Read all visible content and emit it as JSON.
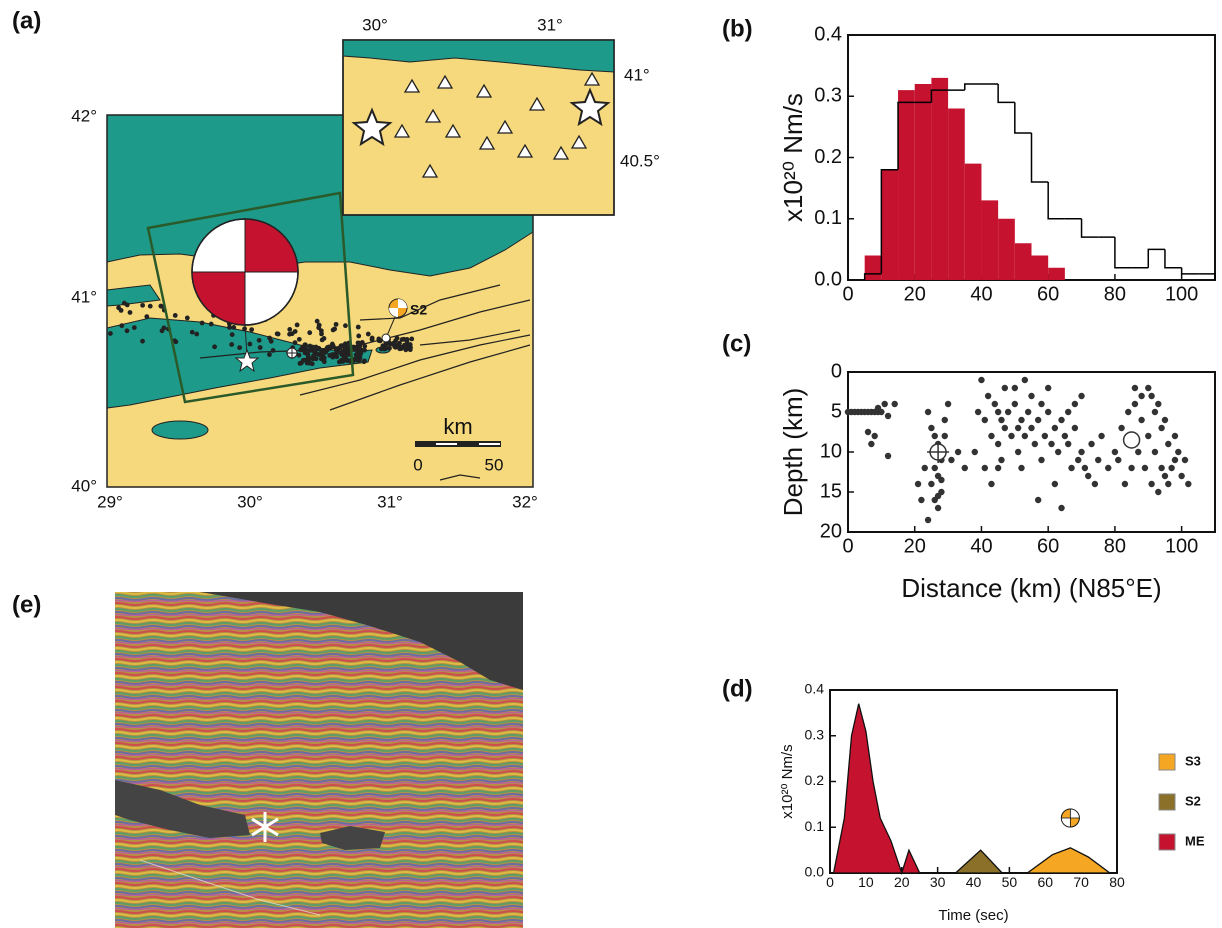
{
  "map": {
    "label": "(a)",
    "lat_labels": [
      "42°",
      "41°",
      "40°"
    ],
    "lon_labels": [
      "29°",
      "30°",
      "31°",
      "32°"
    ],
    "inset_lon_labels": [
      "30°",
      "31°"
    ],
    "inset_lat_labels": [
      "41°",
      "40.5°"
    ],
    "event_label": "S2",
    "scale_title": "km",
    "scale_labels": [
      "0",
      "50"
    ]
  },
  "image": {
    "label": "(e)"
  },
  "chart_data": [
    {
      "type": "histogram",
      "label": "(b)",
      "ylabel": "x10²⁰ Nm/s",
      "bins": [
        5,
        10,
        15,
        20,
        25,
        30,
        35,
        40,
        45,
        50,
        55,
        60,
        65,
        70,
        75,
        80,
        85,
        90,
        95,
        100,
        105,
        110
      ],
      "series": [
        {
          "color": "#c4122f",
          "style": "filled",
          "values": [
            0.04,
            0.18,
            0.31,
            0.32,
            0.33,
            0.28,
            0.19,
            0.13,
            0.1,
            0.06,
            0.04,
            0.02,
            0,
            0,
            0,
            0,
            0,
            0,
            0,
            0,
            0
          ]
        },
        {
          "color": "#000000",
          "style": "step",
          "values": [
            0.01,
            0.18,
            0.29,
            0.29,
            0.31,
            0.31,
            0.32,
            0.32,
            0.29,
            0.24,
            0.16,
            0.1,
            0.1,
            0.07,
            0.07,
            0.02,
            0.02,
            0.05,
            0.02,
            0.01,
            0.01
          ]
        }
      ],
      "xlim": [
        0,
        110
      ],
      "ylim": [
        0,
        0.4
      ],
      "xticks": [
        0,
        20,
        40,
        60,
        80,
        100
      ],
      "yticks": [
        {
          "value": 0,
          "label": "0.0"
        },
        0.1,
        0.2,
        0.3,
        0.4
      ]
    },
    {
      "type": "scatter",
      "label": "(c)",
      "xlabel": "Distance (km) (N85°E)",
      "ylabel": "Depth (km)",
      "xlim": [
        0,
        110
      ],
      "ylim": [
        20,
        0
      ],
      "xticks": [
        0,
        20,
        40,
        60,
        80,
        100
      ],
      "yticks": [
        0,
        5,
        10,
        15,
        20
      ],
      "series": [
        {
          "color": "#333333",
          "marker": "dot",
          "x": [
            0,
            1,
            2,
            3,
            4,
            5,
            6,
            7,
            8,
            9,
            10,
            9,
            11,
            12,
            14,
            7,
            8,
            12,
            6,
            24,
            25,
            26,
            27,
            28,
            26,
            27,
            25,
            28,
            26,
            27,
            22,
            21,
            24,
            29,
            30,
            31,
            28,
            26,
            27,
            29,
            23,
            33,
            35,
            40,
            42,
            44,
            45,
            46,
            48,
            50,
            52,
            54,
            55,
            57,
            58,
            60,
            62,
            64,
            65,
            66,
            68,
            70,
            41,
            43,
            45,
            47,
            49,
            51,
            53,
            56,
            59,
            61,
            63,
            50,
            55,
            60,
            53,
            47,
            67,
            69,
            72,
            74,
            71,
            38,
            39,
            41,
            43,
            46,
            52,
            57,
            62,
            64,
            45,
            51,
            58,
            66,
            68,
            70,
            73,
            75,
            76,
            78,
            80,
            82,
            84,
            86,
            88,
            90,
            92,
            94,
            96,
            98,
            100,
            87,
            89,
            91,
            93,
            95,
            97,
            99,
            101,
            85,
            83,
            88,
            90,
            92,
            94,
            96,
            86,
            91,
            95,
            102,
            81,
            84,
            98,
            93
          ],
          "values": [
            5,
            5,
            5,
            5,
            5,
            5,
            5,
            5,
            5,
            5,
            5,
            4.5,
            4,
            5.5,
            4,
            9,
            8,
            10.5,
            7.5,
            5,
            7,
            8,
            9,
            11,
            12,
            13,
            14,
            15,
            16,
            17,
            16,
            14,
            18.5,
            6,
            4,
            11,
            13.5,
            10.5,
            15.5,
            8,
            12,
            10,
            12,
            1,
            3,
            4,
            5,
            6,
            5,
            4,
            6,
            5,
            7,
            6,
            4,
            5,
            7,
            6,
            8,
            9,
            7,
            10,
            6,
            8,
            9,
            7,
            8,
            7,
            8,
            9,
            8,
            9,
            10,
            2,
            3,
            2,
            1,
            2,
            12,
            11,
            13,
            14,
            12,
            10,
            5,
            12,
            14,
            11,
            12,
            16,
            14,
            17,
            12,
            10,
            11,
            5,
            4,
            3,
            9,
            11,
            8,
            12,
            10,
            7,
            5,
            4,
            3,
            2,
            5,
            7,
            9,
            11,
            13,
            10,
            12,
            14,
            15,
            13,
            12,
            10,
            11,
            12,
            14,
            6,
            8,
            10,
            12,
            14,
            2,
            3,
            6,
            14,
            11,
            9,
            8,
            4
          ]
        },
        {
          "color": "#333333",
          "marker": "crosshair",
          "x": [
            27
          ],
          "values": [
            10
          ]
        },
        {
          "color": "#333333",
          "marker": "open",
          "x": [
            85
          ],
          "values": [
            8.5
          ]
        }
      ]
    },
    {
      "type": "area",
      "label": "(d)",
      "xlabel": "Time (sec)",
      "ylabel": "x10²⁰ Nm/s",
      "xlim": [
        0,
        80
      ],
      "ylim": [
        0,
        0.4
      ],
      "xticks": [
        0,
        10,
        20,
        30,
        40,
        50,
        60,
        70,
        80
      ],
      "yticks": [
        {
          "value": 0,
          "label": "0.0"
        },
        0.1,
        0.2,
        0.3,
        0.4
      ],
      "legend": "right",
      "series": [
        {
          "name": "ME",
          "color": "#c4122f",
          "x": [
            1,
            4,
            6,
            8,
            10,
            12,
            14,
            17,
            20,
            22,
            25
          ],
          "values": [
            0,
            0.12,
            0.3,
            0.37,
            0.31,
            0.2,
            0.12,
            0.07,
            0,
            0.05,
            0
          ]
        },
        {
          "name": "S2",
          "color": "#8a7028",
          "x": [
            35,
            42,
            48
          ],
          "values": [
            0,
            0.05,
            0
          ]
        },
        {
          "name": "S3",
          "color": "#f5a623",
          "x": [
            55,
            62,
            67,
            72,
            78
          ],
          "values": [
            0,
            0.04,
            0.055,
            0.035,
            0
          ]
        }
      ]
    }
  ]
}
